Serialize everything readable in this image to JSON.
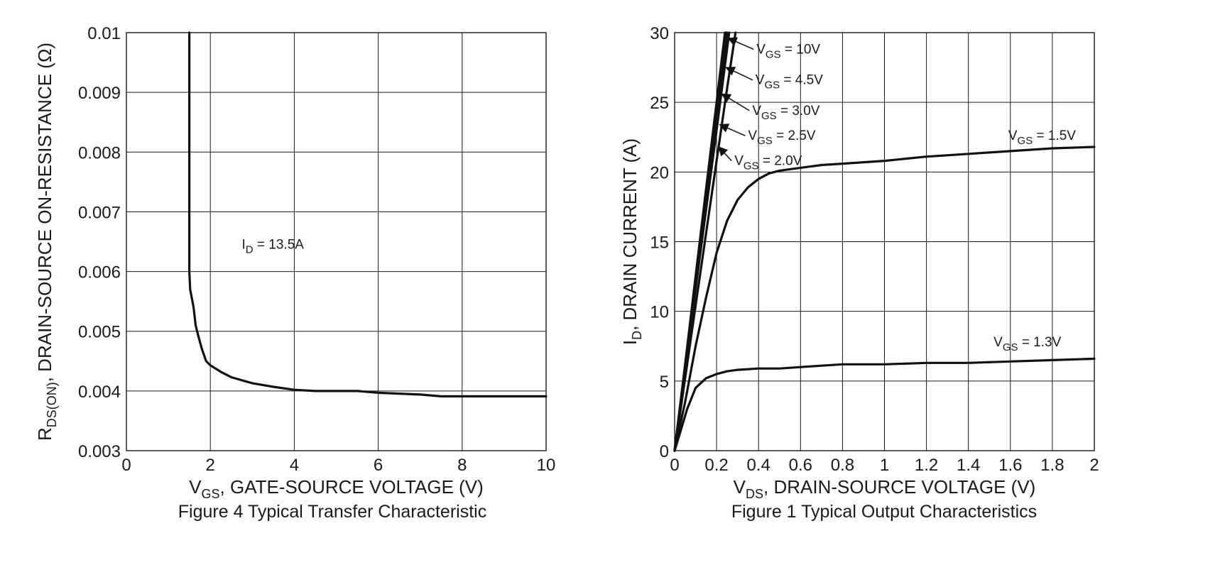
{
  "chart_data": [
    {
      "type": "line",
      "caption": "Figure 4 Typical Transfer Characteristic",
      "xlabel": {
        "main": "V",
        "sub": "GS",
        "rest": ", GATE-SOURCE VOLTAGE (V)"
      },
      "ylabel": {
        "main": "R",
        "sub": "DS(ON)",
        "rest": ", DRAIN-SOURCE ON-RESISTANCE (Ω)"
      },
      "xlim": [
        0,
        10
      ],
      "ylim": [
        0.003,
        0.01
      ],
      "x_ticks": [
        "0",
        "2",
        "4",
        "6",
        "8",
        "10"
      ],
      "y_ticks": [
        "0.003",
        "0.004",
        "0.005",
        "0.006",
        "0.007",
        "0.008",
        "0.009",
        "0.01"
      ],
      "grid": true,
      "annotations": [
        {
          "main": "I",
          "sub": "D",
          "rest": " = 13.5A",
          "x": 2.75,
          "y": 0.00638
        }
      ],
      "series": [
        {
          "x": [
            1.5,
            1.5,
            1.5,
            1.52,
            1.6,
            1.65,
            1.72,
            1.8,
            1.9,
            2.0,
            2.25,
            2.5,
            3.0,
            3.5,
            4.0,
            4.5,
            5.0,
            5.5,
            6.0,
            7.0,
            7.5,
            8.0,
            9.0,
            10.0
          ],
          "y": [
            0.01,
            0.008,
            0.006,
            0.0057,
            0.0054,
            0.0051,
            0.0049,
            0.0047,
            0.0045,
            0.00443,
            0.00432,
            0.00423,
            0.00413,
            0.00407,
            0.00402,
            0.004,
            0.004,
            0.004,
            0.00397,
            0.00394,
            0.00391,
            0.00391,
            0.00391,
            0.00391
          ]
        }
      ]
    },
    {
      "type": "line",
      "caption": "Figure 1 Typical Output Characteristics",
      "xlabel": {
        "main": "V",
        "sub": "DS",
        "rest": ", DRAIN-SOURCE VOLTAGE (V)"
      },
      "ylabel": {
        "main": "I",
        "sub": "D",
        "rest": ", DRAIN CURRENT (A)"
      },
      "xlim": [
        0,
        2
      ],
      "ylim": [
        0,
        30
      ],
      "x_ticks": [
        "0",
        "0.2",
        "0.4",
        "0.6",
        "0.8",
        "1",
        "1.2",
        "1.4",
        "1.6",
        "1.8",
        "2"
      ],
      "y_ticks": [
        "0",
        "5",
        "10",
        "15",
        "20",
        "25",
        "30"
      ],
      "grid": true,
      "series": [
        {
          "label": {
            "main": "V",
            "sub": "GS",
            "rest": " = 10V"
          },
          "x": [
            0,
            0.05,
            0.1,
            0.15,
            0.2,
            0.24
          ],
          "y": [
            0,
            6.2,
            12.5,
            18.8,
            25.0,
            30.0
          ]
        },
        {
          "label": {
            "main": "V",
            "sub": "GS",
            "rest": " = 4.5V"
          },
          "x": [
            0,
            0.05,
            0.1,
            0.15,
            0.2,
            0.245
          ],
          "y": [
            0,
            6.1,
            12.2,
            18.4,
            24.5,
            30.0
          ]
        },
        {
          "label": {
            "main": "V",
            "sub": "GS",
            "rest": " = 3.0V"
          },
          "x": [
            0,
            0.05,
            0.1,
            0.15,
            0.2,
            0.25
          ],
          "y": [
            0,
            6.0,
            12.0,
            18.0,
            24.0,
            30.0
          ]
        },
        {
          "label": {
            "main": "V",
            "sub": "GS",
            "rest": " = 2.5V"
          },
          "x": [
            0,
            0.05,
            0.1,
            0.15,
            0.2,
            0.26
          ],
          "y": [
            0,
            5.8,
            11.6,
            17.3,
            23.0,
            30.0
          ]
        },
        {
          "label": {
            "main": "V",
            "sub": "GS",
            "rest": " = 2.0V"
          },
          "x": [
            0,
            0.05,
            0.1,
            0.15,
            0.2,
            0.25,
            0.29
          ],
          "y": [
            0,
            5.2,
            10.4,
            15.6,
            20.8,
            26.0,
            30.0
          ]
        },
        {
          "label": {
            "main": "V",
            "sub": "GS",
            "rest": " = 1.5V"
          },
          "x": [
            0,
            0.05,
            0.1,
            0.15,
            0.2,
            0.25,
            0.3,
            0.35,
            0.4,
            0.45,
            0.5,
            0.6,
            0.7,
            0.8,
            0.9,
            1.0,
            1.2,
            1.4,
            1.6,
            1.8,
            2.0
          ],
          "y": [
            0,
            3.5,
            7.5,
            11.0,
            14.2,
            16.5,
            18.0,
            18.9,
            19.5,
            19.9,
            20.1,
            20.3,
            20.5,
            20.6,
            20.7,
            20.8,
            21.1,
            21.3,
            21.5,
            21.7,
            21.8
          ]
        },
        {
          "label": {
            "main": "V",
            "sub": "GS",
            "rest": " = 1.3V"
          },
          "x": [
            0,
            0.03,
            0.06,
            0.1,
            0.15,
            0.2,
            0.25,
            0.3,
            0.4,
            0.5,
            0.6,
            0.7,
            0.8,
            1.0,
            1.2,
            1.4,
            1.6,
            1.8,
            2.0
          ],
          "y": [
            0,
            1.5,
            3.0,
            4.5,
            5.2,
            5.5,
            5.7,
            5.8,
            5.9,
            5.9,
            6.0,
            6.1,
            6.2,
            6.2,
            6.3,
            6.3,
            6.4,
            6.5,
            6.6
          ]
        }
      ]
    }
  ]
}
